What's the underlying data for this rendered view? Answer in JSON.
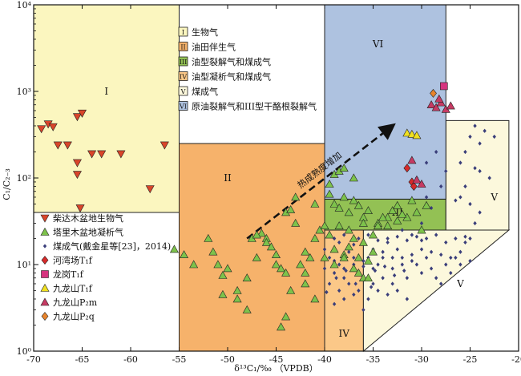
{
  "chart_data": {
    "type": "scatter",
    "title": "",
    "xlabel": "δ¹³C₁/‰ （VPDB）",
    "ylabel": "C₁/C₂₋₃",
    "xlim": [
      -70,
      -20
    ],
    "ylim": [
      1,
      10000
    ],
    "y_scale": "log",
    "x_ticks": [
      -70,
      -65,
      -60,
      -55,
      -50,
      -45,
      -40,
      -35,
      -30,
      -25,
      -20
    ],
    "x_tick_labels": [
      "-70",
      "-65",
      "-60",
      "-55",
      "-50",
      "-45",
      "-40",
      "-35",
      "-30",
      "-25",
      "-20"
    ],
    "y_ticks": [
      1,
      10,
      100,
      1000,
      10000
    ],
    "y_tick_labels": [
      "10⁰",
      "10¹",
      "10²",
      "10³",
      "10⁴"
    ],
    "regions": [
      {
        "id": "I",
        "label": "I",
        "color": "#fbf6bf",
        "polygon": [
          [
            -70,
            40
          ],
          [
            -55,
            40
          ],
          [
            -55,
            10000
          ],
          [
            -70,
            10000
          ]
        ],
        "label_at": [
          -62.5,
          1000
        ]
      },
      {
        "id": "II",
        "label": "II",
        "color": "#f6b26b",
        "polygon": [
          [
            -55,
            1
          ],
          [
            -40,
            1
          ],
          [
            -40,
            250
          ],
          [
            -55,
            250
          ]
        ],
        "label_at": [
          -50,
          100
        ]
      },
      {
        "id": "III",
        "label": "III",
        "color": "#93c154",
        "polygon": [
          [
            -40,
            25
          ],
          [
            -27.5,
            25
          ],
          [
            -27.5,
            57
          ],
          [
            -40,
            57
          ]
        ],
        "label_at": [
          -32.5,
          40
        ]
      },
      {
        "id": "IV",
        "label": "IV",
        "color": "#fbc888",
        "polygon": [
          [
            -40,
            1
          ],
          [
            -36,
            1
          ],
          [
            -36,
            25
          ],
          [
            -40,
            25
          ]
        ],
        "label_at": [
          -38,
          1.6
        ]
      },
      {
        "id": "V_upper",
        "label": "V",
        "color": "#fcf8dc",
        "polygon": [
          [
            -27.5,
            25
          ],
          [
            -21,
            25
          ],
          [
            -21,
            460
          ],
          [
            -27.5,
            460
          ]
        ],
        "label_at": [
          -22.5,
          60
        ]
      },
      {
        "id": "V_lower",
        "label": "V",
        "color": "#fcf8dc",
        "polygon": [
          [
            -36,
            1
          ],
          [
            -36,
            25
          ],
          [
            -21,
            25
          ]
        ],
        "label_at": [
          -26,
          6
        ]
      },
      {
        "id": "VI",
        "label": "VI",
        "color": "#aec2e0",
        "polygon": [
          [
            -40,
            57
          ],
          [
            -27.5,
            57
          ],
          [
            -27.5,
            10000
          ],
          [
            -40,
            10000
          ]
        ],
        "label_at": [
          -34.5,
          3500
        ]
      }
    ],
    "arrow": {
      "from": [
        -48,
        20
      ],
      "to": [
        -33,
        400
      ],
      "label": "热成熟度增加"
    },
    "legend_regions": [
      {
        "key": "I",
        "label": "生物气",
        "color": "#fbf6bf"
      },
      {
        "key": "II",
        "label": "油田伴生气",
        "color": "#f6b26b"
      },
      {
        "key": "III",
        "label": "油型裂解气和煤成气",
        "color": "#93c154"
      },
      {
        "key": "IV",
        "label": "油型凝析气和煤成气",
        "color": "#fbc888"
      },
      {
        "key": "V",
        "label": "煤成气",
        "color": "#fcf8dc"
      },
      {
        "key": "VI",
        "label": "原油裂解气和III型干酪根裂解气",
        "color": "#aec2e0"
      }
    ],
    "series": [
      {
        "name": "柴达木盆地生物气",
        "marker": "triangle-down",
        "color": "#d9452a",
        "points": [
          [
            -69.2,
            370
          ],
          [
            -68.5,
            420
          ],
          [
            -68,
            390
          ],
          [
            -67.5,
            240
          ],
          [
            -66.5,
            240
          ],
          [
            -65.5,
            510
          ],
          [
            -65,
            560
          ],
          [
            -65.5,
            150
          ],
          [
            -65.5,
            110
          ],
          [
            -64,
            190
          ],
          [
            -63,
            190
          ],
          [
            -61,
            190
          ],
          [
            -56.5,
            240
          ],
          [
            -58,
            75
          ],
          [
            -65.2,
            45
          ]
        ]
      },
      {
        "name": "塔里木盆地凝析气",
        "marker": "triangle-up",
        "color": "#7dc24b",
        "points": [
          [
            -55.5,
            15
          ],
          [
            -54.5,
            13
          ],
          [
            -53.5,
            10
          ],
          [
            -52,
            20
          ],
          [
            -51.5,
            14
          ],
          [
            -51,
            10
          ],
          [
            -50.5,
            7.5
          ],
          [
            -50,
            9
          ],
          [
            -50.5,
            4.5
          ],
          [
            -49,
            5
          ],
          [
            -49,
            4
          ],
          [
            -48,
            7
          ],
          [
            -47.5,
            20
          ],
          [
            -47,
            12
          ],
          [
            -46.5,
            23
          ],
          [
            -47,
            22
          ],
          [
            -46,
            20
          ],
          [
            -46,
            18
          ],
          [
            -45.5,
            16
          ],
          [
            -45,
            10
          ],
          [
            -45,
            13
          ],
          [
            -44.5,
            9
          ],
          [
            -44,
            8
          ],
          [
            -44,
            40
          ],
          [
            -43.5,
            43
          ],
          [
            -43,
            30
          ],
          [
            -42.5,
            10
          ],
          [
            -42,
            14
          ],
          [
            -42,
            6
          ],
          [
            -41.5,
            12
          ],
          [
            -41,
            20
          ],
          [
            -41,
            50
          ],
          [
            -43,
            60
          ],
          [
            -40.5,
            25
          ],
          [
            -42,
            8
          ],
          [
            -44,
            2.5
          ],
          [
            -44.5,
            1.9
          ],
          [
            -48,
            3
          ],
          [
            -43.5,
            5
          ],
          [
            -41,
            4
          ],
          [
            -39.5,
            65
          ],
          [
            -39,
            50
          ],
          [
            -38.5,
            45
          ],
          [
            -38,
            60
          ],
          [
            -37.5,
            40
          ],
          [
            -37,
            55
          ],
          [
            -36.5,
            48
          ],
          [
            -36,
            35
          ],
          [
            -35.5,
            42
          ],
          [
            -34.5,
            30
          ],
          [
            -33.5,
            35
          ],
          [
            -32.5,
            32
          ],
          [
            -39,
            110
          ],
          [
            -38.5,
            120
          ],
          [
            -38,
            130
          ],
          [
            -37,
            100
          ],
          [
            -39.5,
            85
          ],
          [
            -38.5,
            28
          ],
          [
            -37.5,
            25
          ],
          [
            -36,
            30
          ],
          [
            -35,
            22
          ],
          [
            -40,
            28
          ],
          [
            -39.5,
            22
          ],
          [
            -39,
            15
          ],
          [
            -38,
            13
          ],
          [
            -37,
            9
          ],
          [
            -36.5,
            8
          ],
          [
            -36,
            7
          ],
          [
            -35.5,
            11
          ],
          [
            -35,
            14
          ],
          [
            -40,
            12
          ],
          [
            -39,
            10
          ],
          [
            -38,
            12
          ],
          [
            -37.5,
            16
          ],
          [
            -36.5,
            12
          ],
          [
            -35.5,
            7
          ],
          [
            -36,
            18
          ],
          [
            -37,
            20
          ],
          [
            -34,
            35
          ],
          [
            -33.5,
            28
          ],
          [
            -34.5,
            28
          ],
          [
            -33,
            42
          ],
          [
            -32.5,
            48
          ],
          [
            -31.5,
            35
          ],
          [
            -30.5,
            40
          ],
          [
            -31,
            55
          ],
          [
            -30,
            25
          ],
          [
            -29.5,
            48
          ],
          [
            -32,
            38
          ]
        ]
      },
      {
        "name": "煤成气(戴金星等[23]，2014)",
        "marker": "diamond-small",
        "color": "#3a3e7a",
        "points": [
          [
            -40,
            15
          ],
          [
            -39.5,
            12
          ],
          [
            -39,
            8
          ],
          [
            -38.5,
            10
          ],
          [
            -38,
            7
          ],
          [
            -37.5,
            14
          ],
          [
            -37,
            12
          ],
          [
            -36.5,
            8
          ],
          [
            -36,
            18
          ],
          [
            -35.5,
            12
          ],
          [
            -35,
            15
          ],
          [
            -34.5,
            10
          ],
          [
            -34,
            14
          ],
          [
            -33.5,
            18
          ],
          [
            -33,
            9
          ],
          [
            -32.5,
            15
          ],
          [
            -32,
            12
          ],
          [
            -31.5,
            7
          ],
          [
            -31,
            11
          ],
          [
            -30.5,
            10
          ],
          [
            -30,
            8
          ],
          [
            -29.5,
            12
          ],
          [
            -29,
            9
          ],
          [
            -28.5,
            7
          ],
          [
            -28,
            6
          ],
          [
            -27.5,
            10
          ],
          [
            -27,
            8
          ],
          [
            -26.5,
            12
          ],
          [
            -26,
            10
          ],
          [
            -25.5,
            18
          ],
          [
            -25,
            20
          ],
          [
            -24.5,
            30
          ],
          [
            -24,
            40
          ],
          [
            -25,
            50
          ],
          [
            -26,
            60
          ],
          [
            -23,
            100
          ],
          [
            -24,
            250
          ],
          [
            -25,
            300
          ],
          [
            -23.5,
            350
          ],
          [
            -24.5,
            400
          ],
          [
            -25.5,
            200
          ],
          [
            -26,
            150
          ],
          [
            -24,
            120
          ],
          [
            -25.5,
            80
          ],
          [
            -26.5,
            55
          ],
          [
            -22.5,
            300
          ],
          [
            -24.5,
            130
          ],
          [
            -39,
            20
          ],
          [
            -38.5,
            18
          ],
          [
            -38,
            22
          ],
          [
            -37,
            17
          ],
          [
            -36.5,
            20
          ],
          [
            -35.5,
            22
          ],
          [
            -34.5,
            19
          ],
          [
            -33.5,
            20
          ],
          [
            -32.5,
            21
          ],
          [
            -31.5,
            19
          ],
          [
            -30.5,
            21
          ],
          [
            -29.5,
            20
          ],
          [
            -28.5,
            22
          ],
          [
            -27.5,
            18
          ],
          [
            -26.5,
            20
          ],
          [
            -25.5,
            21
          ],
          [
            -39.5,
            6
          ],
          [
            -38.5,
            5
          ],
          [
            -37.5,
            6
          ],
          [
            -36.5,
            5
          ],
          [
            -35.5,
            4
          ],
          [
            -34.5,
            5
          ],
          [
            -33.5,
            4.5
          ],
          [
            -32.5,
            5
          ],
          [
            -31.5,
            4
          ],
          [
            -33,
            6
          ],
          [
            -35,
            6
          ],
          [
            -34,
            7
          ],
          [
            -37,
            4.5
          ],
          [
            -38,
            4
          ],
          [
            -39,
            3.5
          ],
          [
            -36,
            3
          ],
          [
            -40,
            9
          ],
          [
            -39,
            11
          ],
          [
            -38,
            9
          ],
          [
            -37,
            10
          ],
          [
            -36,
            11
          ],
          [
            -35,
            9
          ],
          [
            -34,
            12
          ],
          [
            -33,
            12
          ],
          [
            -32,
            10
          ],
          [
            -31,
            13
          ],
          [
            -30,
            15
          ],
          [
            -29,
            14
          ],
          [
            -28,
            13
          ],
          [
            -27,
            12
          ],
          [
            -26,
            14
          ],
          [
            -25,
            11
          ],
          [
            -30,
            30
          ],
          [
            -29.5,
            60
          ],
          [
            -30.5,
            100
          ],
          [
            -29.5,
            150
          ],
          [
            -28.5,
            200
          ],
          [
            -27.5,
            120
          ],
          [
            -28,
            80
          ],
          [
            -29,
            45
          ],
          [
            -36,
            9.5
          ],
          [
            -35.2,
            5.5
          ],
          [
            -34.8,
            8.5
          ],
          [
            -33.8,
            9.5
          ],
          [
            -32.8,
            7.5
          ],
          [
            -31.8,
            8.5
          ],
          [
            -37.8,
            8.5
          ],
          [
            -38.8,
            7
          ],
          [
            -39.8,
            4.8
          ],
          [
            -36.8,
            6
          ],
          [
            -32,
            25
          ],
          [
            -31,
            22
          ],
          [
            -30,
            19
          ]
        ]
      },
      {
        "name": "河湾场T₁f",
        "marker": "diamond",
        "color": "#d62a2a",
        "points": [
          [
            -31.5,
            130
          ],
          [
            -31,
            90
          ],
          [
            -30.8,
            80
          ]
        ]
      },
      {
        "name": "龙岗T₁f",
        "marker": "square",
        "color": "#d6337f",
        "points": [
          [
            -27.7,
            1150
          ]
        ]
      },
      {
        "name": "九龙山T₁f",
        "marker": "triangle-up",
        "color": "#f0e020",
        "points": [
          [
            -31.5,
            330
          ],
          [
            -31,
            320
          ],
          [
            -30.5,
            310
          ]
        ]
      },
      {
        "name": "九龙山P₂m",
        "marker": "triangle-up",
        "color": "#c63a63",
        "points": [
          [
            -29,
            700
          ],
          [
            -28.5,
            650
          ],
          [
            -28,
            740
          ],
          [
            -27.5,
            620
          ],
          [
            -27,
            680
          ],
          [
            -28.2,
            820
          ],
          [
            -31,
            160
          ],
          [
            -30.5,
            95
          ],
          [
            -30,
            85
          ]
        ]
      },
      {
        "name": "九龙山P₂q",
        "marker": "diamond",
        "color": "#e8842c",
        "points": [
          [
            -28.8,
            950
          ]
        ]
      }
    ]
  }
}
